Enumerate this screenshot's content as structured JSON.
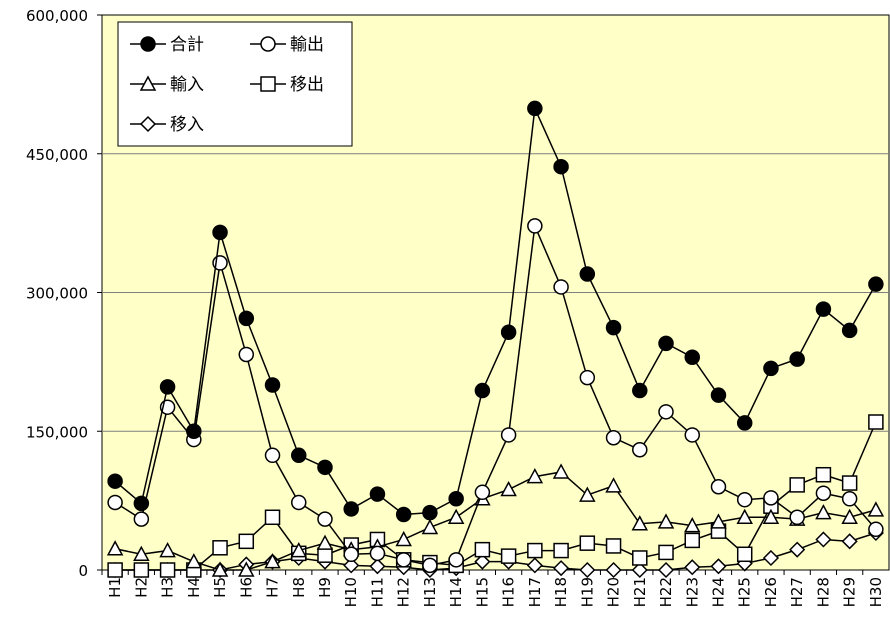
{
  "chart_data": {
    "type": "line",
    "title": "",
    "xlabel": "",
    "ylabel": "",
    "ylim": [
      0,
      600000
    ],
    "yticks": [
      "0",
      "150,000",
      "300,000",
      "450,000",
      "600,000"
    ],
    "ytick_values": [
      0,
      150000,
      300000,
      450000,
      600000
    ],
    "grid": true,
    "legend_position": "top-left",
    "categories": [
      "H1",
      "H2",
      "H3",
      "H4",
      "H5",
      "H6",
      "H7",
      "H8",
      "H9",
      "H10",
      "H11",
      "H12",
      "H13",
      "H14",
      "H15",
      "H16",
      "H17",
      "H18",
      "H19",
      "H20",
      "H21",
      "H22",
      "H23",
      "H24",
      "H25",
      "H26",
      "H27",
      "H28",
      "H29",
      "H30"
    ],
    "series": [
      {
        "name": "合計",
        "marker": "filled-circle",
        "values": [
          96000,
          72000,
          198000,
          150000,
          365000,
          272000,
          200000,
          124000,
          111000,
          66000,
          82000,
          60000,
          62000,
          77000,
          194000,
          257000,
          499000,
          436000,
          320000,
          262000,
          194000,
          245000,
          230000,
          189000,
          159000,
          218000,
          228000,
          282000,
          259000,
          309000
        ]
      },
      {
        "name": "輸出",
        "marker": "open-circle",
        "values": [
          73000,
          55000,
          176000,
          141000,
          332000,
          233000,
          124000,
          73000,
          55000,
          17000,
          18000,
          11000,
          5000,
          11000,
          84000,
          146000,
          372000,
          306000,
          208000,
          143000,
          130000,
          171000,
          146000,
          90000,
          76000,
          78000,
          57000,
          83000,
          77000,
          44000
        ]
      },
      {
        "name": "輸入",
        "marker": "open-triangle",
        "values": [
          23000,
          17000,
          21000,
          9000,
          0,
          0,
          9000,
          21000,
          29000,
          22000,
          25000,
          33000,
          46000,
          57000,
          77000,
          87000,
          101000,
          106000,
          81000,
          91000,
          50000,
          52000,
          48000,
          52000,
          57000,
          57000,
          55000,
          62000,
          57000,
          65000
        ]
      },
      {
        "name": "移出",
        "marker": "open-square",
        "values": [
          0,
          0,
          0,
          0,
          24000,
          31000,
          57000,
          18000,
          16000,
          27000,
          33000,
          11000,
          8000,
          5000,
          22000,
          15000,
          21000,
          21000,
          29000,
          26000,
          13000,
          19000,
          32000,
          42000,
          17000,
          69000,
          92000,
          103000,
          94000,
          160000
        ]
      },
      {
        "name": "移入",
        "marker": "open-diamond",
        "values": [
          0,
          0,
          0,
          0,
          0,
          6000,
          9000,
          13000,
          9000,
          5000,
          4000,
          3000,
          0,
          2000,
          9000,
          9000,
          5000,
          2000,
          0,
          0,
          0,
          0,
          3000,
          4000,
          7000,
          13000,
          22000,
          33000,
          31000,
          40000
        ]
      }
    ]
  }
}
